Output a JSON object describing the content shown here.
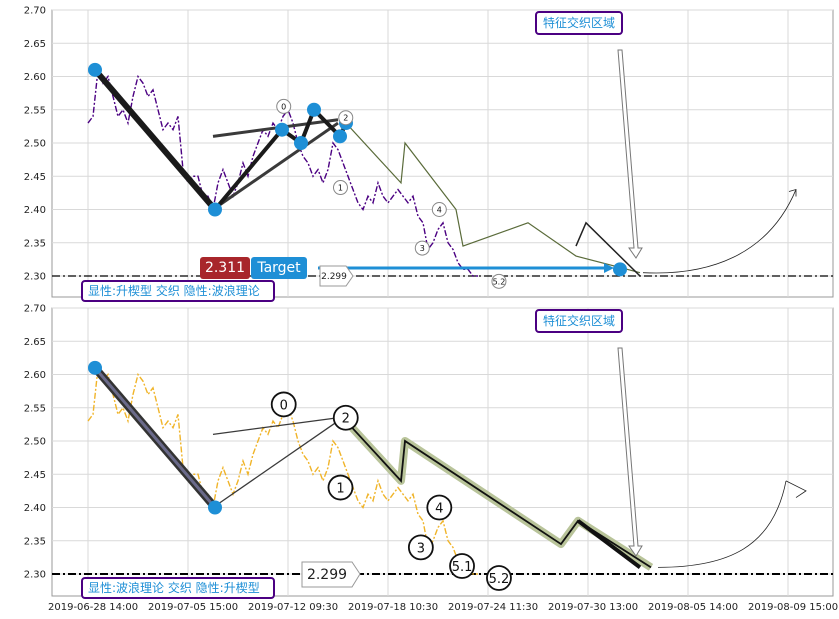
{
  "colors": {
    "top_price": "#4b0082",
    "bottom_price": "#f0b429",
    "blue_node": "#1e8fd6",
    "target_red": "#a8262b",
    "target_blue": "#1e8fd6",
    "box_border": "#4b0082",
    "box_text": "#1e8fd6"
  },
  "chart_data": [
    {
      "type": "line",
      "panel": "top",
      "ylim": [
        2.295,
        2.7
      ],
      "yticks": [
        "2.70",
        "2.65",
        "2.60",
        "2.55",
        "2.50",
        "2.45",
        "2.40",
        "2.35",
        "2.30"
      ],
      "price": [
        [
          0.0,
          2.53
        ],
        [
          0.5,
          2.54
        ],
        [
          1.0,
          2.61
        ],
        [
          1.5,
          2.59
        ],
        [
          2.0,
          2.6
        ],
        [
          2.5,
          2.57
        ],
        [
          3.0,
          2.54
        ],
        [
          3.5,
          2.55
        ],
        [
          4.0,
          2.53
        ],
        [
          4.5,
          2.57
        ],
        [
          5.0,
          2.6
        ],
        [
          5.5,
          2.59
        ],
        [
          6.0,
          2.57
        ],
        [
          6.5,
          2.58
        ],
        [
          7.0,
          2.55
        ],
        [
          7.5,
          2.52
        ],
        [
          8.0,
          2.53
        ],
        [
          8.5,
          2.52
        ],
        [
          9.0,
          2.54
        ],
        [
          9.5,
          2.46
        ],
        [
          10.0,
          2.44
        ],
        [
          10.5,
          2.45
        ],
        [
          11.0,
          2.45
        ],
        [
          11.5,
          2.42
        ],
        [
          12.0,
          2.42
        ],
        [
          12.5,
          2.4
        ],
        [
          13.0,
          2.44
        ],
        [
          13.5,
          2.46
        ],
        [
          14.0,
          2.44
        ],
        [
          14.5,
          2.42
        ],
        [
          15.0,
          2.44
        ],
        [
          15.5,
          2.47
        ],
        [
          16.0,
          2.45
        ],
        [
          16.5,
          2.48
        ],
        [
          17.0,
          2.5
        ],
        [
          17.5,
          2.52
        ],
        [
          18.0,
          2.51
        ],
        [
          18.5,
          2.53
        ],
        [
          19.0,
          2.52
        ],
        [
          19.5,
          2.54
        ],
        [
          20.0,
          2.55
        ],
        [
          20.5,
          2.53
        ],
        [
          21.0,
          2.5
        ],
        [
          21.5,
          2.48
        ],
        [
          22.0,
          2.47
        ],
        [
          22.5,
          2.45
        ],
        [
          23.0,
          2.46
        ],
        [
          23.5,
          2.44
        ],
        [
          24.0,
          2.46
        ],
        [
          24.5,
          2.5
        ],
        [
          25.0,
          2.49
        ],
        [
          25.5,
          2.47
        ],
        [
          26.0,
          2.45
        ],
        [
          26.5,
          2.43
        ],
        [
          27.0,
          2.41
        ],
        [
          27.5,
          2.4
        ],
        [
          28.0,
          2.42
        ],
        [
          28.5,
          2.41
        ],
        [
          29.0,
          2.44
        ],
        [
          29.5,
          2.42
        ],
        [
          30.0,
          2.41
        ],
        [
          30.5,
          2.42
        ],
        [
          31.0,
          2.43
        ],
        [
          31.5,
          2.42
        ],
        [
          32.0,
          2.41
        ],
        [
          32.5,
          2.42
        ],
        [
          33.0,
          2.39
        ],
        [
          33.5,
          2.38
        ],
        [
          34.0,
          2.34
        ],
        [
          34.5,
          2.35
        ],
        [
          35.0,
          2.37
        ],
        [
          35.5,
          2.38
        ],
        [
          36.0,
          2.35
        ],
        [
          36.5,
          2.34
        ],
        [
          37.0,
          2.32
        ],
        [
          37.5,
          2.31
        ],
        [
          38.0,
          2.31
        ],
        [
          38.5,
          2.3
        ],
        [
          39.0,
          2.3
        ]
      ],
      "markers": [
        {
          "label": "0",
          "x": 19.6,
          "y": 2.555
        },
        {
          "label": "2",
          "x": 24.3,
          "y": 2.538
        },
        {
          "label": "1",
          "x": 23.9,
          "y": 2.433
        },
        {
          "label": "4",
          "x": 34.6,
          "y": 2.4
        },
        {
          "label": "3",
          "x": 33.4,
          "y": 2.342
        },
        {
          "label": "5.2",
          "x": 38.8,
          "y": 2.292
        }
      ],
      "annotations": {
        "hline_value": 2.3,
        "price_tag": "2.299",
        "target_value": "2.311",
        "target_label": "Target",
        "zone_label": "特征交织区域",
        "legend_text": "显性:升楔型 交织 隐性:波浪理论"
      }
    },
    {
      "type": "line",
      "panel": "bottom",
      "ylim": [
        2.285,
        2.7
      ],
      "yticks": [
        "2.70",
        "2.65",
        "2.60",
        "2.55",
        "2.50",
        "2.45",
        "2.40",
        "2.35",
        "2.30"
      ],
      "price": [
        [
          0.0,
          2.53
        ],
        [
          0.5,
          2.54
        ],
        [
          1.0,
          2.61
        ],
        [
          1.5,
          2.59
        ],
        [
          2.0,
          2.6
        ],
        [
          2.5,
          2.57
        ],
        [
          3.0,
          2.54
        ],
        [
          3.5,
          2.55
        ],
        [
          4.0,
          2.53
        ],
        [
          4.5,
          2.57
        ],
        [
          5.0,
          2.6
        ],
        [
          5.5,
          2.59
        ],
        [
          6.0,
          2.57
        ],
        [
          6.5,
          2.58
        ],
        [
          7.0,
          2.55
        ],
        [
          7.5,
          2.52
        ],
        [
          8.0,
          2.53
        ],
        [
          8.5,
          2.52
        ],
        [
          9.0,
          2.54
        ],
        [
          9.5,
          2.46
        ],
        [
          10.0,
          2.44
        ],
        [
          10.5,
          2.45
        ],
        [
          11.0,
          2.45
        ],
        [
          11.5,
          2.42
        ],
        [
          12.0,
          2.42
        ],
        [
          12.5,
          2.4
        ],
        [
          13.0,
          2.44
        ],
        [
          13.5,
          2.46
        ],
        [
          14.0,
          2.44
        ],
        [
          14.5,
          2.42
        ],
        [
          15.0,
          2.44
        ],
        [
          15.5,
          2.47
        ],
        [
          16.0,
          2.45
        ],
        [
          16.5,
          2.48
        ],
        [
          17.0,
          2.5
        ],
        [
          17.5,
          2.52
        ],
        [
          18.0,
          2.51
        ],
        [
          18.5,
          2.53
        ],
        [
          19.0,
          2.52
        ],
        [
          19.5,
          2.54
        ],
        [
          20.0,
          2.55
        ],
        [
          20.5,
          2.53
        ],
        [
          21.0,
          2.5
        ],
        [
          21.5,
          2.48
        ],
        [
          22.0,
          2.47
        ],
        [
          22.5,
          2.45
        ],
        [
          23.0,
          2.46
        ],
        [
          23.5,
          2.44
        ],
        [
          24.0,
          2.46
        ],
        [
          24.5,
          2.5
        ],
        [
          25.0,
          2.49
        ],
        [
          25.5,
          2.47
        ],
        [
          26.0,
          2.45
        ],
        [
          26.5,
          2.43
        ],
        [
          27.0,
          2.41
        ],
        [
          27.5,
          2.4
        ],
        [
          28.0,
          2.42
        ],
        [
          28.5,
          2.41
        ],
        [
          29.0,
          2.44
        ],
        [
          29.5,
          2.42
        ],
        [
          30.0,
          2.41
        ],
        [
          30.5,
          2.42
        ],
        [
          31.0,
          2.43
        ],
        [
          31.5,
          2.42
        ],
        [
          32.0,
          2.41
        ],
        [
          32.5,
          2.42
        ],
        [
          33.0,
          2.39
        ],
        [
          33.5,
          2.38
        ],
        [
          34.0,
          2.34
        ],
        [
          34.5,
          2.35
        ],
        [
          35.0,
          2.37
        ],
        [
          35.5,
          2.38
        ],
        [
          36.0,
          2.35
        ],
        [
          36.5,
          2.34
        ],
        [
          37.0,
          2.32
        ],
        [
          37.5,
          2.31
        ],
        [
          38.0,
          2.31
        ],
        [
          38.5,
          2.3
        ],
        [
          39.0,
          2.3
        ]
      ],
      "markers": [
        {
          "label": "0",
          "x": 19.6,
          "y": 2.555
        },
        {
          "label": "2",
          "x": 24.3,
          "y": 2.535
        },
        {
          "label": "1",
          "x": 23.9,
          "y": 2.43
        },
        {
          "label": "4",
          "x": 34.6,
          "y": 2.4
        },
        {
          "label": "3",
          "x": 33.3,
          "y": 2.34
        },
        {
          "label": "5.1",
          "x": 36.2,
          "y": 2.312
        },
        {
          "label": "5.2",
          "x": 38.8,
          "y": 2.294
        }
      ],
      "annotations": {
        "hline_value": 2.3,
        "price_tag": "2.299",
        "zone_label": "特征交织区域",
        "legend_text": "显性:波浪理论 交织 隐性:升楔型"
      },
      "xticks": [
        "2019-06-28 14:00",
        "2019-07-05 15:00",
        "2019-07-12 09:30",
        "2019-07-18 10:30",
        "2019-07-24 11:30",
        "2019-07-30 13:00",
        "2019-08-05 14:00",
        "2019-08-09 15:00"
      ]
    }
  ]
}
